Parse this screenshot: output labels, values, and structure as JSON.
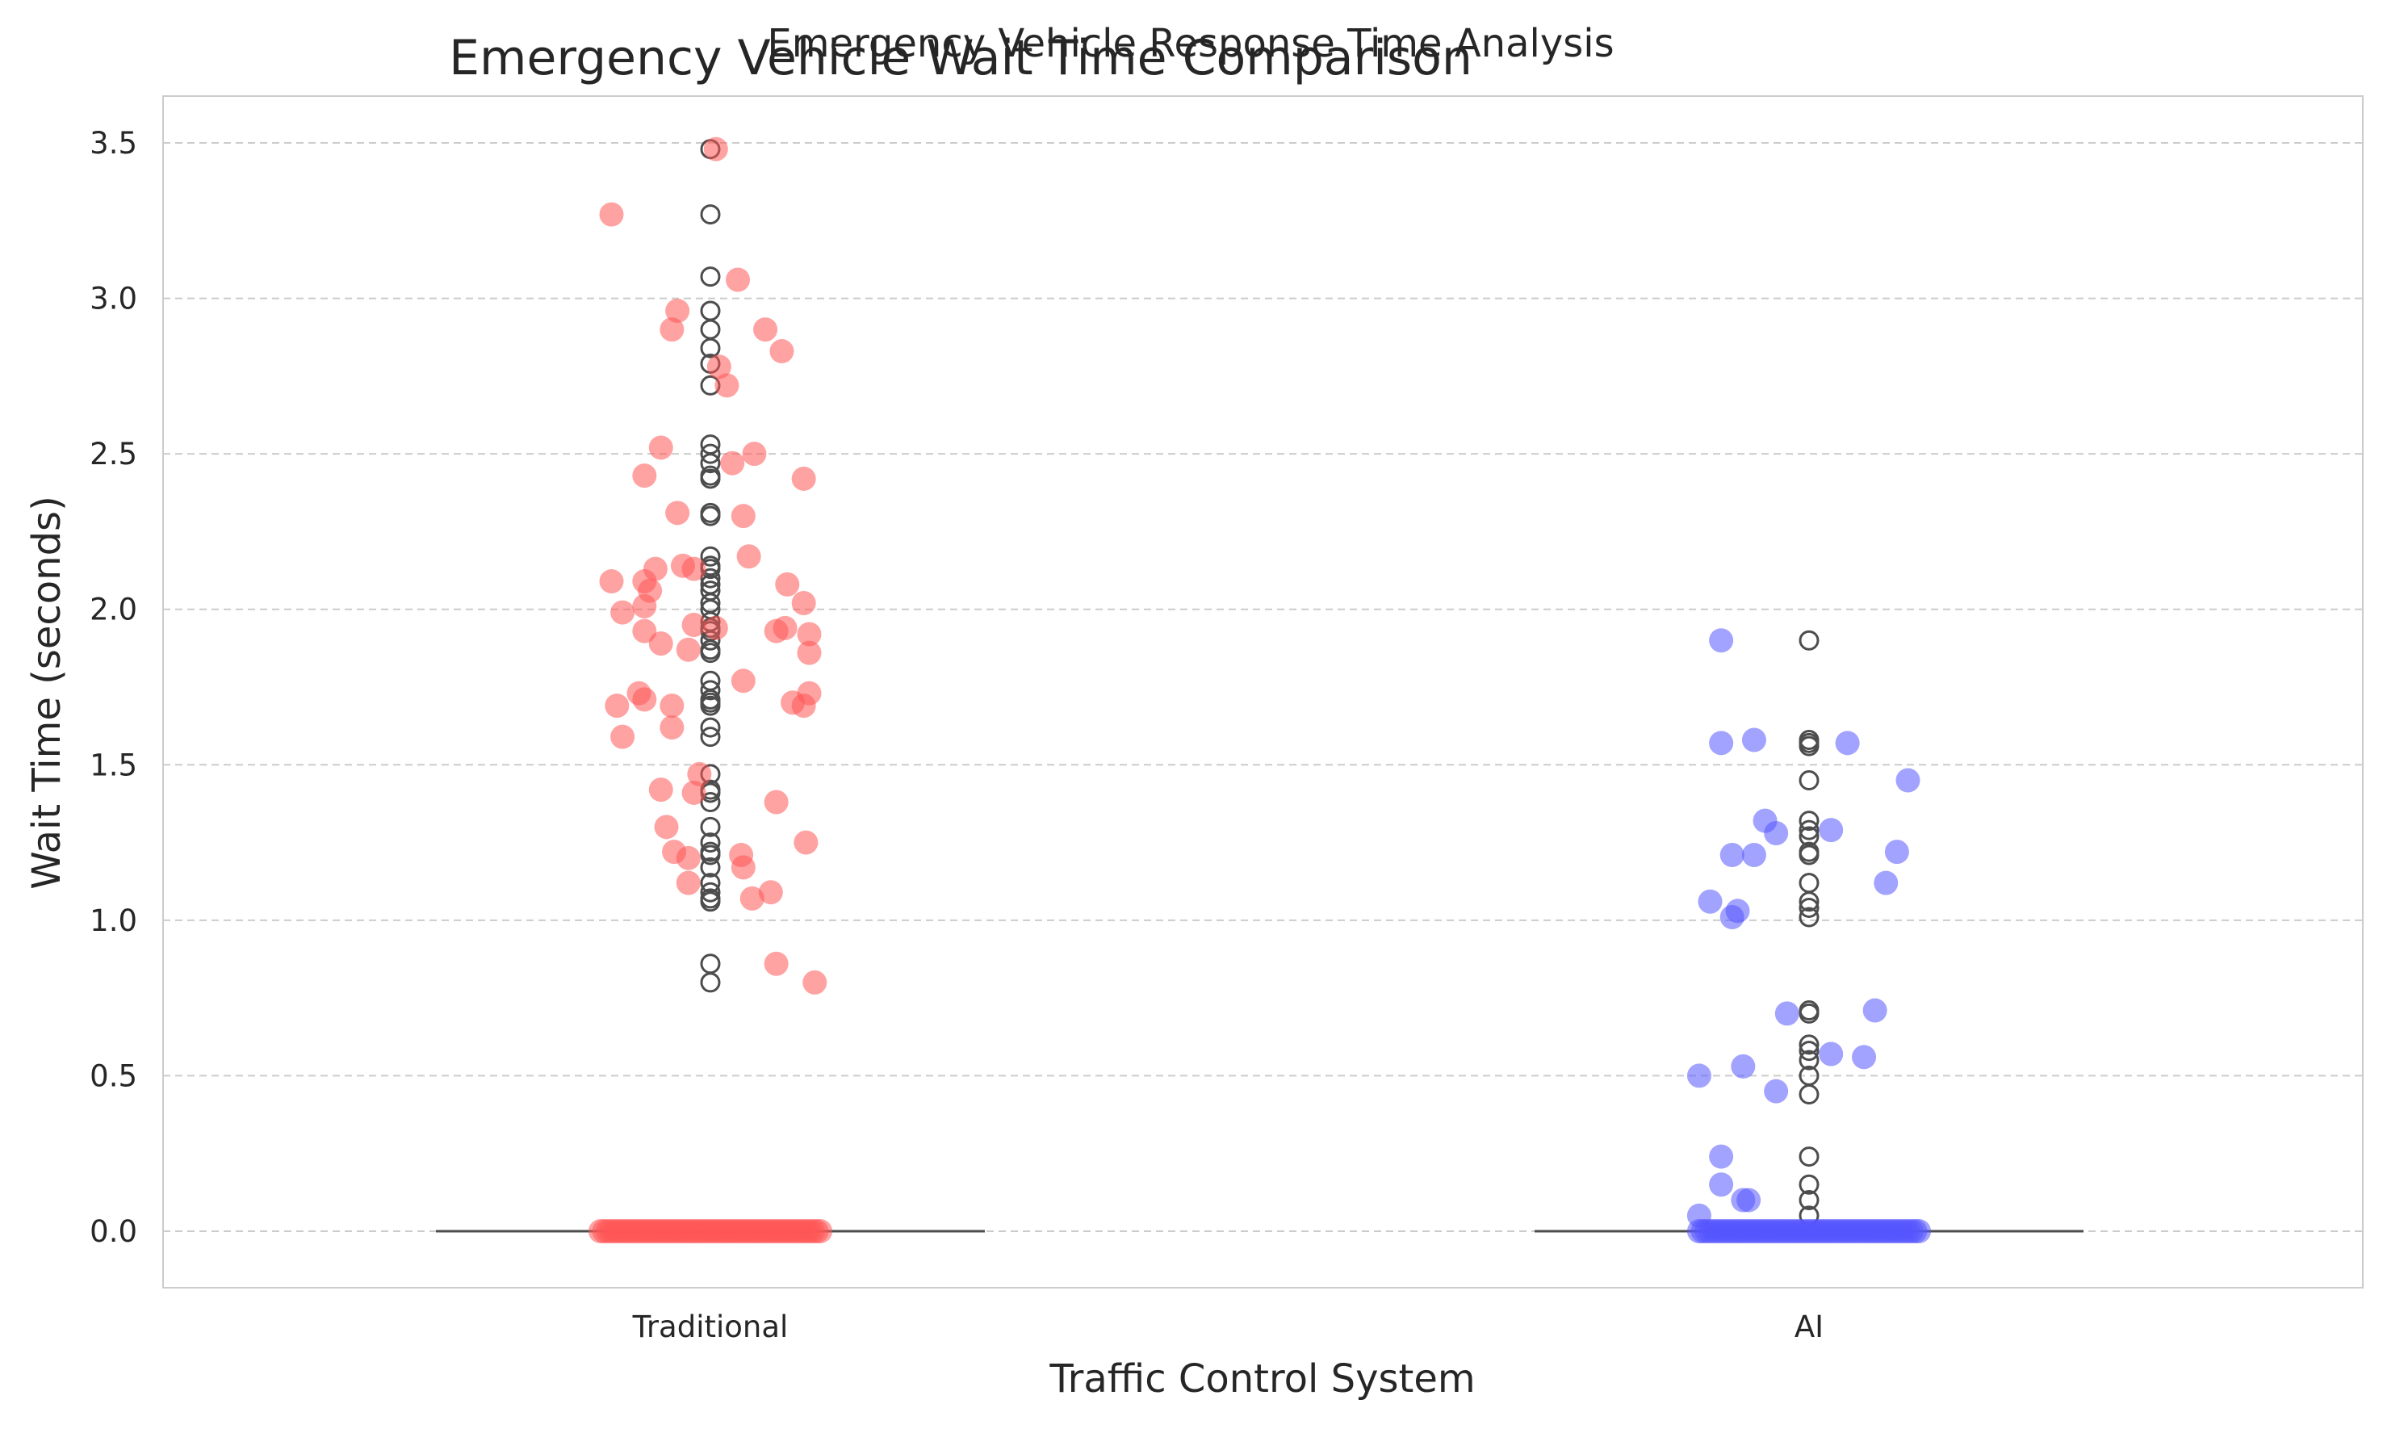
{
  "chart_data": {
    "type": "scatter",
    "suptitle": "Emergency Vehicle Response Time Analysis",
    "title": "Emergency Vehicle Wait Time Comparison",
    "xlabel": "Traffic Control System",
    "ylabel": "Wait Time (seconds)",
    "categories": [
      "Traditional",
      "AI"
    ],
    "ylim": [
      -0.18,
      3.65
    ],
    "yticks": [
      0.0,
      0.5,
      1.0,
      1.5,
      2.0,
      2.5,
      3.0,
      3.5
    ],
    "ytick_labels": [
      "0.0",
      "0.5",
      "1.0",
      "1.5",
      "2.0",
      "2.5",
      "3.0",
      "3.5"
    ],
    "grid": "y-dashed",
    "colors": {
      "Traditional": "#ff5555",
      "AI": "#5555ff",
      "box": "#4d4d4d",
      "outlier": "#4d4d4d",
      "grid": "#cccccc",
      "spine": "#cccccc"
    },
    "series": [
      {
        "name": "Traditional",
        "zero_count": 60,
        "jittered_points": [
          [
            -0.09,
            3.27
          ],
          [
            0.005,
            3.48
          ],
          [
            0.025,
            3.06
          ],
          [
            -0.03,
            2.96
          ],
          [
            -0.035,
            2.9
          ],
          [
            0.05,
            2.9
          ],
          [
            0.065,
            2.83
          ],
          [
            0.008,
            2.78
          ],
          [
            0.015,
            2.72
          ],
          [
            -0.045,
            2.52
          ],
          [
            0.04,
            2.5
          ],
          [
            0.02,
            2.47
          ],
          [
            -0.06,
            2.43
          ],
          [
            0.085,
            2.42
          ],
          [
            -0.03,
            2.31
          ],
          [
            0.03,
            2.3
          ],
          [
            0.035,
            2.17
          ],
          [
            -0.025,
            2.14
          ],
          [
            -0.015,
            2.13
          ],
          [
            -0.05,
            2.13
          ],
          [
            -0.09,
            2.09
          ],
          [
            -0.06,
            2.09
          ],
          [
            0.07,
            2.08
          ],
          [
            -0.055,
            2.06
          ],
          [
            -0.06,
            2.01
          ],
          [
            0.085,
            2.02
          ],
          [
            -0.08,
            1.99
          ],
          [
            -0.015,
            1.95
          ],
          [
            0.005,
            1.94
          ],
          [
            0.06,
            1.93
          ],
          [
            0.068,
            1.94
          ],
          [
            -0.06,
            1.93
          ],
          [
            0.09,
            1.92
          ],
          [
            -0.045,
            1.89
          ],
          [
            -0.02,
            1.87
          ],
          [
            0.09,
            1.86
          ],
          [
            0.03,
            1.77
          ],
          [
            -0.065,
            1.73
          ],
          [
            0.09,
            1.73
          ],
          [
            -0.06,
            1.71
          ],
          [
            0.075,
            1.7
          ],
          [
            0.085,
            1.69
          ],
          [
            -0.035,
            1.69
          ],
          [
            -0.085,
            1.69
          ],
          [
            -0.035,
            1.62
          ],
          [
            -0.08,
            1.59
          ],
          [
            -0.01,
            1.47
          ],
          [
            -0.045,
            1.42
          ],
          [
            -0.015,
            1.41
          ],
          [
            0.06,
            1.38
          ],
          [
            -0.04,
            1.3
          ],
          [
            0.087,
            1.25
          ],
          [
            -0.033,
            1.22
          ],
          [
            -0.02,
            1.2
          ],
          [
            0.028,
            1.21
          ],
          [
            0.03,
            1.17
          ],
          [
            -0.02,
            1.12
          ],
          [
            0.055,
            1.09
          ],
          [
            0.038,
            1.07
          ],
          [
            0.06,
            0.86
          ],
          [
            0.095,
            0.8
          ]
        ],
        "outliers": [
          3.48,
          3.27,
          3.07,
          2.96,
          2.9,
          2.84,
          2.79,
          2.72,
          2.53,
          2.5,
          2.47,
          2.43,
          2.42,
          2.31,
          2.3,
          2.17,
          2.14,
          2.13,
          2.1,
          2.08,
          2.06,
          2.02,
          2.0,
          1.96,
          1.94,
          1.93,
          1.9,
          1.87,
          1.86,
          1.77,
          1.74,
          1.71,
          1.7,
          1.69,
          1.62,
          1.59,
          1.47,
          1.42,
          1.41,
          1.38,
          1.3,
          1.25,
          1.22,
          1.21,
          1.17,
          1.12,
          1.09,
          1.07,
          1.06,
          0.86,
          0.8
        ]
      },
      {
        "name": "AI",
        "zero_count": 60,
        "jittered_points": [
          [
            -0.08,
            1.9
          ],
          [
            -0.08,
            1.57
          ],
          [
            -0.05,
            1.58
          ],
          [
            0.035,
            1.57
          ],
          [
            0.09,
            1.45
          ],
          [
            -0.04,
            1.32
          ],
          [
            -0.03,
            1.28
          ],
          [
            0.02,
            1.29
          ],
          [
            -0.07,
            1.21
          ],
          [
            -0.05,
            1.21
          ],
          [
            0.08,
            1.22
          ],
          [
            0.07,
            1.12
          ],
          [
            -0.09,
            1.06
          ],
          [
            -0.065,
            1.03
          ],
          [
            -0.07,
            1.01
          ],
          [
            0.06,
            0.71
          ],
          [
            -0.02,
            0.7
          ],
          [
            0.02,
            0.57
          ],
          [
            0.05,
            0.56
          ],
          [
            -0.06,
            0.53
          ],
          [
            -0.03,
            0.45
          ],
          [
            -0.1,
            0.5
          ],
          [
            -0.08,
            0.24
          ],
          [
            -0.08,
            0.15
          ],
          [
            -0.055,
            0.1
          ],
          [
            -0.06,
            0.1
          ],
          [
            -0.1,
            0.05
          ]
        ],
        "outliers": [
          1.9,
          1.58,
          1.57,
          1.56,
          1.45,
          1.32,
          1.29,
          1.27,
          1.22,
          1.21,
          1.12,
          1.06,
          1.04,
          1.01,
          0.71,
          0.7,
          0.6,
          0.58,
          0.55,
          0.5,
          0.44,
          0.24,
          0.15,
          0.1,
          0.05
        ]
      }
    ]
  }
}
